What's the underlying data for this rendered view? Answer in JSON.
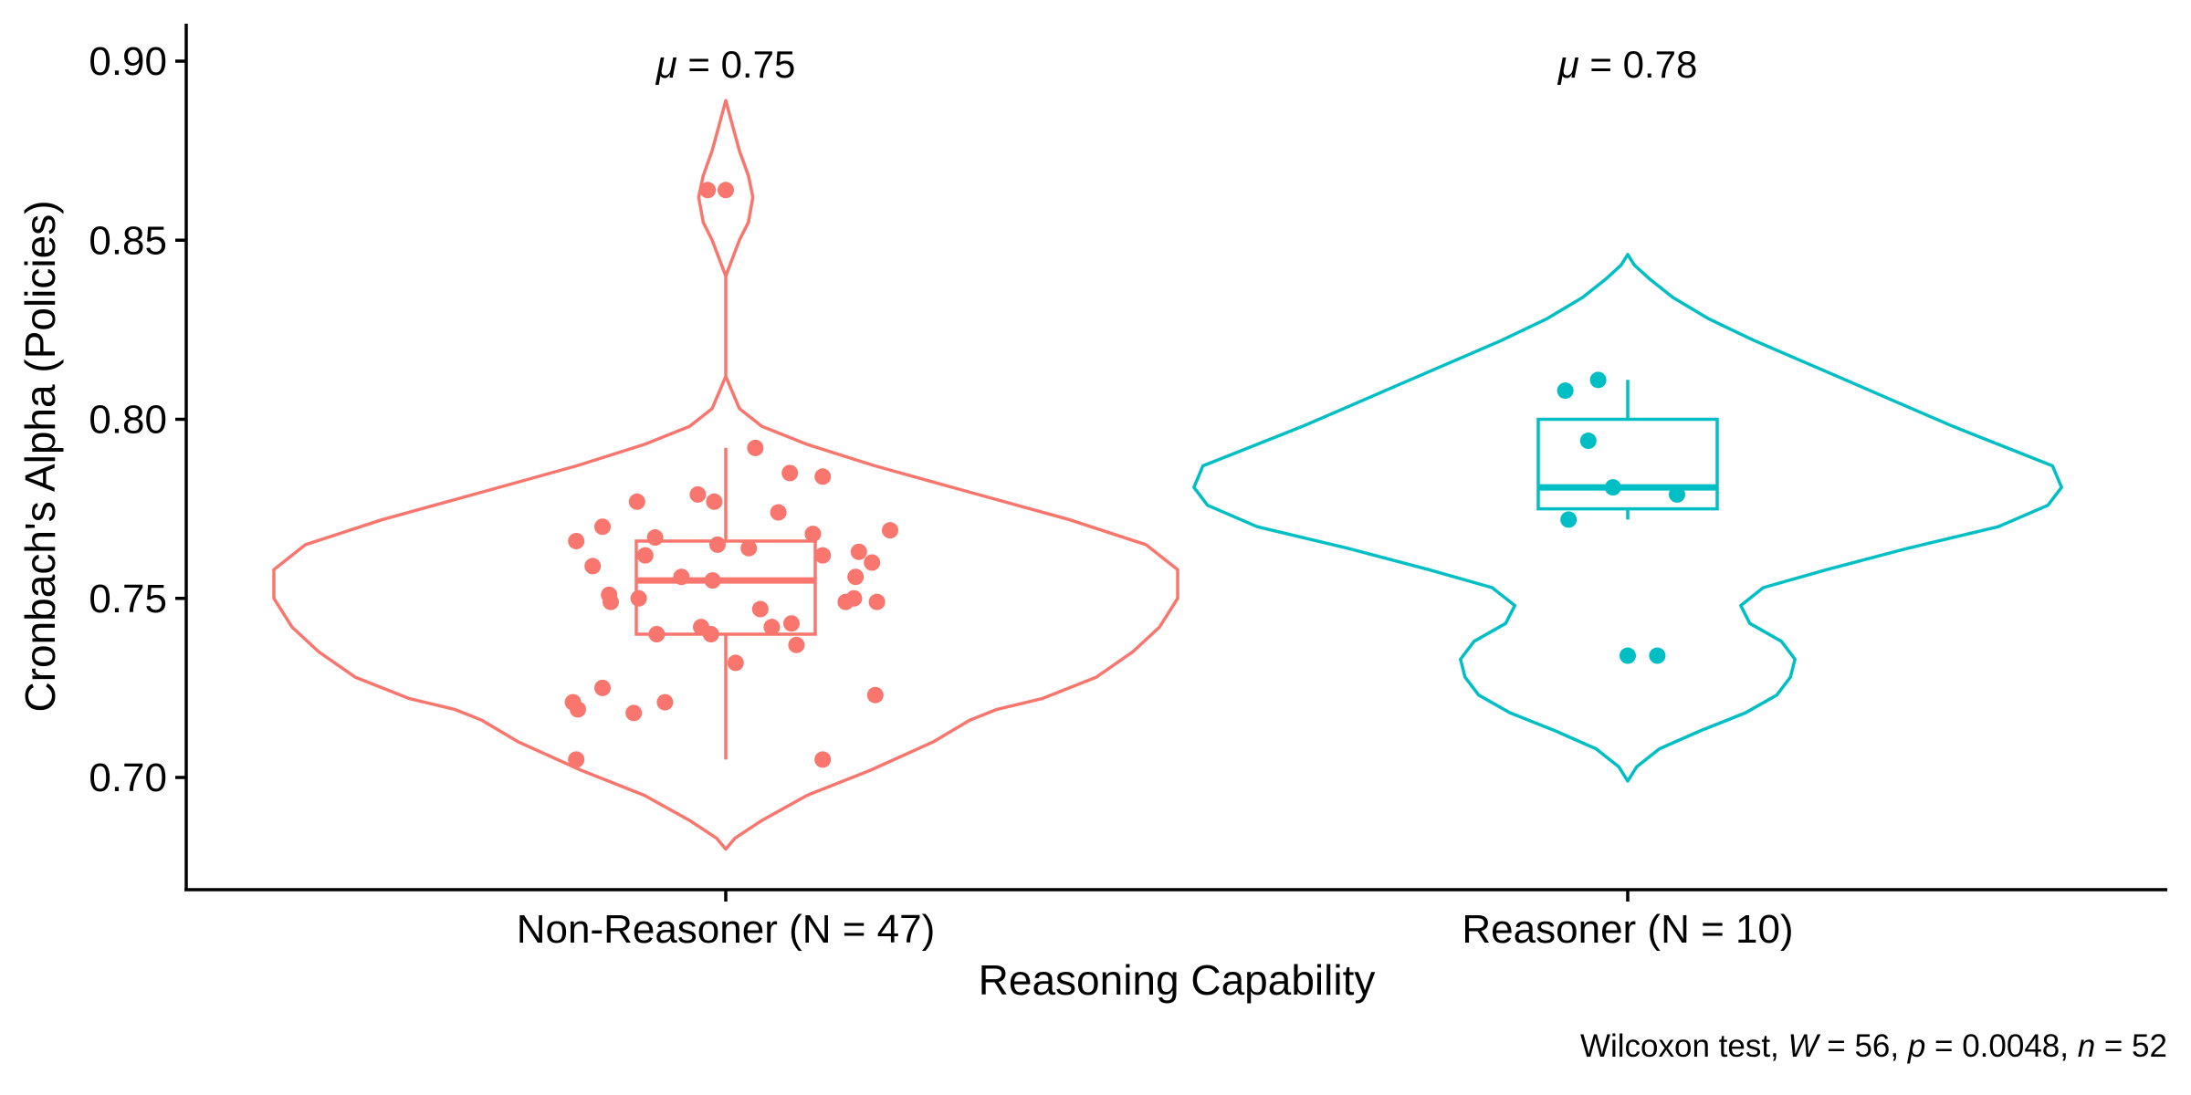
{
  "chart_data": {
    "type": "violin",
    "xlabel": "Reasoning Capability",
    "ylabel": "Cronbach's Alpha (Policies)",
    "ylim": [
      0.67,
      0.9
    ],
    "yticks": [
      "0.70",
      "0.75",
      "0.80",
      "0.85",
      "0.90"
    ],
    "caption": {
      "prefix": "Wilcoxon test, ",
      "W_symbol": "W",
      "W_value": " = 56, ",
      "p_symbol": "p",
      "p_value": " = 0.0048, ",
      "n_symbol": "n",
      "n_value": " = 52"
    },
    "groups": [
      {
        "label": "Non-Reasoner (N = 47)",
        "color": "#F8766D",
        "mean_symbol": "μ",
        "mean_text": " = 0.75",
        "box": {
          "min": 0.705,
          "q1": 0.74,
          "median": 0.755,
          "q3": 0.766,
          "max": 0.792
        },
        "violin_range": [
          0.68,
          0.889
        ],
        "density": [
          [
            0.68,
            0.0
          ],
          [
            0.683,
            0.02
          ],
          [
            0.688,
            0.08
          ],
          [
            0.695,
            0.18
          ],
          [
            0.702,
            0.32
          ],
          [
            0.71,
            0.46
          ],
          [
            0.716,
            0.54
          ],
          [
            0.719,
            0.6
          ],
          [
            0.722,
            0.7
          ],
          [
            0.728,
            0.82
          ],
          [
            0.735,
            0.9
          ],
          [
            0.742,
            0.96
          ],
          [
            0.75,
            1.0
          ],
          [
            0.758,
            1.0
          ],
          [
            0.765,
            0.93
          ],
          [
            0.772,
            0.76
          ],
          [
            0.78,
            0.53
          ],
          [
            0.787,
            0.33
          ],
          [
            0.793,
            0.18
          ],
          [
            0.798,
            0.08
          ],
          [
            0.803,
            0.03
          ],
          [
            0.812,
            0.0
          ],
          [
            0.825,
            0.0
          ],
          [
            0.84,
            0.0
          ],
          [
            0.85,
            0.03
          ],
          [
            0.855,
            0.05
          ],
          [
            0.862,
            0.06
          ],
          [
            0.868,
            0.05
          ],
          [
            0.875,
            0.03
          ],
          [
            0.882,
            0.015
          ],
          [
            0.889,
            0.0
          ]
        ],
        "points": [
          [
            -0.91,
            0.705
          ],
          [
            0.59,
            0.705
          ],
          [
            -0.93,
            0.721
          ],
          [
            -0.9,
            0.719
          ],
          [
            -0.75,
            0.725
          ],
          [
            -0.56,
            0.718
          ],
          [
            -0.37,
            0.721
          ],
          [
            0.91,
            0.723
          ],
          [
            0.06,
            0.732
          ],
          [
            -0.42,
            0.74
          ],
          [
            -0.15,
            0.742
          ],
          [
            -0.09,
            0.74
          ],
          [
            0.28,
            0.742
          ],
          [
            0.4,
            0.743
          ],
          [
            0.43,
            0.737
          ],
          [
            0.21,
            0.747
          ],
          [
            -0.71,
            0.751
          ],
          [
            -0.7,
            0.749
          ],
          [
            -0.53,
            0.75
          ],
          [
            0.73,
            0.749
          ],
          [
            0.78,
            0.75
          ],
          [
            0.92,
            0.749
          ],
          [
            -0.81,
            0.759
          ],
          [
            -0.27,
            0.756
          ],
          [
            -0.08,
            0.755
          ],
          [
            0.79,
            0.756
          ],
          [
            0.89,
            0.76
          ],
          [
            -0.49,
            0.762
          ],
          [
            -0.43,
            0.767
          ],
          [
            -0.91,
            0.766
          ],
          [
            -0.05,
            0.765
          ],
          [
            0.14,
            0.764
          ],
          [
            0.53,
            0.768
          ],
          [
            0.59,
            0.762
          ],
          [
            0.81,
            0.763
          ],
          [
            1.0,
            0.769
          ],
          [
            -0.75,
            0.77
          ],
          [
            -0.54,
            0.777
          ],
          [
            -0.17,
            0.779
          ],
          [
            -0.07,
            0.777
          ],
          [
            0.32,
            0.774
          ],
          [
            0.39,
            0.785
          ],
          [
            0.59,
            0.784
          ],
          [
            0.18,
            0.792
          ],
          [
            -0.11,
            0.864
          ],
          [
            0.0,
            0.864
          ]
        ]
      },
      {
        "label": "Reasoner (N = 10)",
        "color": "#00BFC4",
        "mean_symbol": "μ",
        "mean_text": " = 0.78",
        "box": {
          "min": 0.772,
          "q1": 0.775,
          "median": 0.781,
          "q3": 0.8,
          "max": 0.811
        },
        "violin_range": [
          0.699,
          0.846
        ],
        "density": [
          [
            0.699,
            0.0
          ],
          [
            0.703,
            0.02
          ],
          [
            0.708,
            0.07
          ],
          [
            0.713,
            0.16
          ],
          [
            0.718,
            0.26
          ],
          [
            0.723,
            0.33
          ],
          [
            0.728,
            0.36
          ],
          [
            0.733,
            0.37
          ],
          [
            0.738,
            0.34
          ],
          [
            0.743,
            0.27
          ],
          [
            0.748,
            0.25
          ],
          [
            0.753,
            0.3
          ],
          [
            0.758,
            0.44
          ],
          [
            0.764,
            0.62
          ],
          [
            0.77,
            0.82
          ],
          [
            0.776,
            0.93
          ],
          [
            0.781,
            0.96
          ],
          [
            0.787,
            0.94
          ],
          [
            0.792,
            0.84
          ],
          [
            0.798,
            0.72
          ],
          [
            0.804,
            0.61
          ],
          [
            0.81,
            0.5
          ],
          [
            0.816,
            0.39
          ],
          [
            0.822,
            0.28
          ],
          [
            0.828,
            0.18
          ],
          [
            0.834,
            0.1
          ],
          [
            0.839,
            0.05
          ],
          [
            0.843,
            0.015
          ],
          [
            0.846,
            0.0
          ]
        ],
        "points": [
          [
            -0.38,
            0.808
          ],
          [
            -0.18,
            0.811
          ],
          [
            -0.24,
            0.794
          ],
          [
            -0.09,
            0.781
          ],
          [
            0.3,
            0.779
          ],
          [
            -0.36,
            0.772
          ],
          [
            0.0,
            0.734
          ],
          [
            0.18,
            0.734
          ]
        ]
      }
    ]
  }
}
